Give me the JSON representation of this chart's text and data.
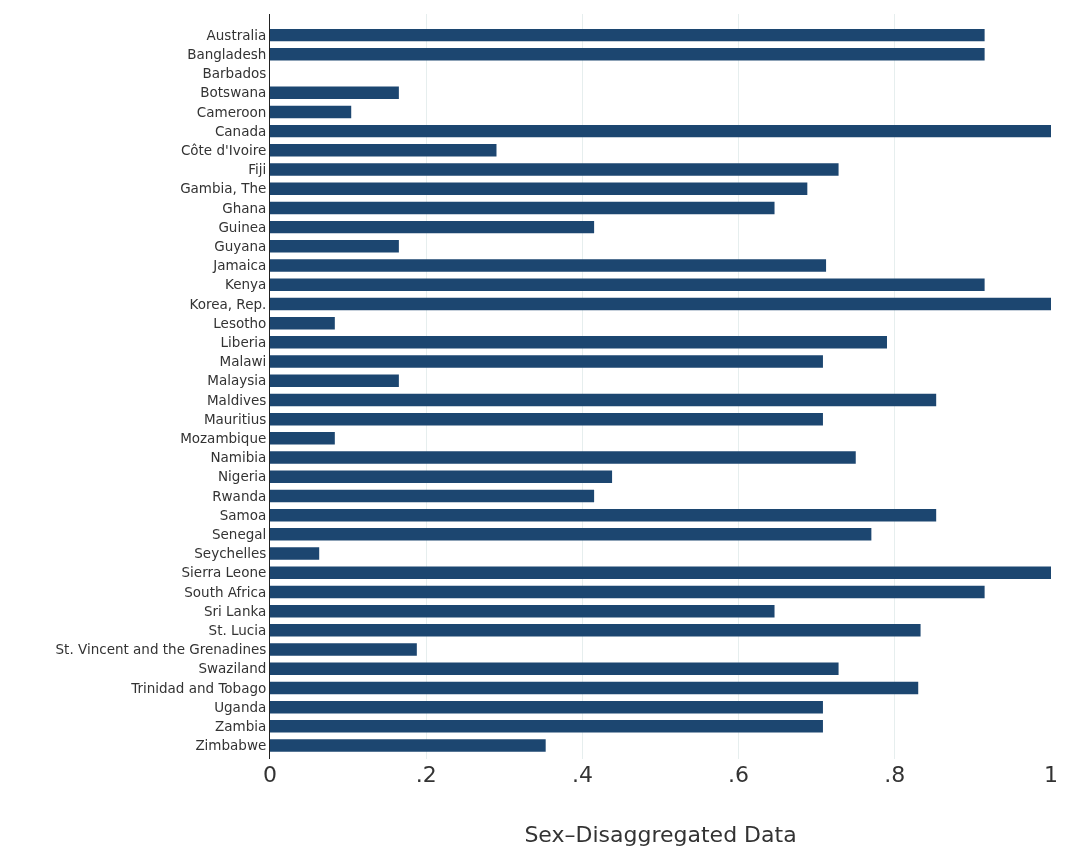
{
  "chart_data": {
    "type": "bar",
    "orientation": "horizontal",
    "xlabel": "Sex–Disaggregated Data",
    "categories": [
      "Australia",
      "Bangladesh",
      "Barbados",
      "Botswana",
      "Cameroon",
      "Canada",
      "Côte d'Ivoire",
      "Fiji",
      "Gambia, The",
      "Ghana",
      "Guinea",
      "Guyana",
      "Jamaica",
      "Kenya",
      "Korea, Rep.",
      "Lesotho",
      "Liberia",
      "Malawi",
      "Malaysia",
      "Maldives",
      "Mauritius",
      "Mozambique",
      "Namibia",
      "Nigeria",
      "Rwanda",
      "Samoa",
      "Senegal",
      "Seychelles",
      "Sierra Leone",
      "South Africa",
      "Sri Lanka",
      "St. Lucia",
      "St. Vincent and the Grenadines",
      "Swaziland",
      "Trinidad and Tobago",
      "Uganda",
      "Zambia",
      "Zimbabwe"
    ],
    "values": [
      0.915,
      0.915,
      0,
      0.165,
      0.104,
      1,
      0.29,
      0.728,
      0.688,
      0.646,
      0.415,
      0.165,
      0.712,
      0.915,
      1,
      0.083,
      0.79,
      0.708,
      0.165,
      0.853,
      0.708,
      0.083,
      0.75,
      0.438,
      0.415,
      0.853,
      0.77,
      0.063,
      1,
      0.915,
      0.646,
      0.833,
      0.188,
      0.728,
      0.83,
      0.708,
      0.708,
      0.353
    ],
    "color": "#1c4670",
    "xlim": [
      0,
      1
    ],
    "xticks": [
      0,
      {
        "value": 0.2,
        "label": ".2"
      },
      {
        "value": 0.4,
        "label": ".4"
      },
      {
        "value": 0.6,
        "label": ".6"
      },
      {
        "value": 0.8,
        "label": ".8"
      },
      1
    ],
    "grid": "x",
    "legend": false
  }
}
